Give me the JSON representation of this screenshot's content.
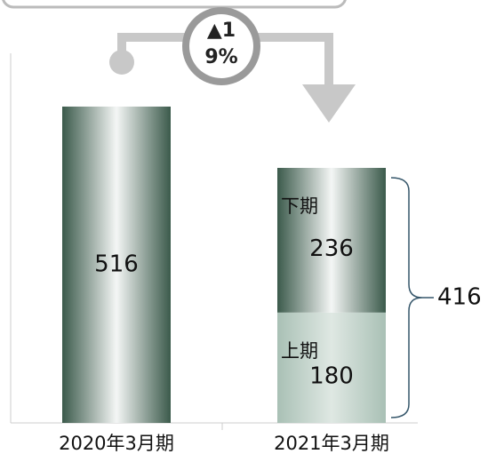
{
  "chart_data": {
    "type": "bar",
    "stacked": true,
    "categories": [
      "2020年3月期",
      "2021年3月期"
    ],
    "series": [
      {
        "color": "#3d5f50",
        "values": [
          516,
          null
        ]
      },
      {
        "name": "上期",
        "color": "#a9c0b5",
        "values": [
          null,
          180
        ]
      },
      {
        "name": "下期",
        "color": "#3d5f50",
        "values": [
          null,
          236
        ]
      }
    ],
    "totals": [
      null,
      416
    ],
    "annotation": "▲19%",
    "ylim": [
      0,
      600
    ]
  }
}
